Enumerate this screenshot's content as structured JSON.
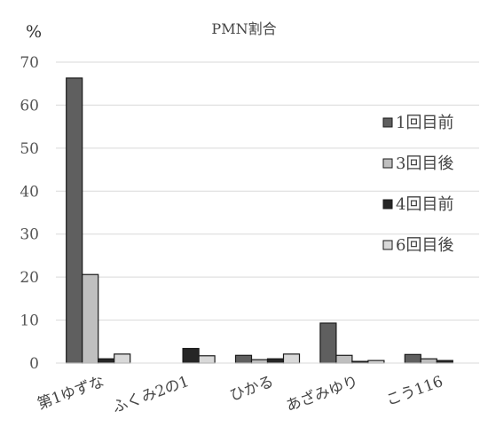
{
  "chart_data": {
    "type": "bar",
    "title": "PMN割合",
    "ylabel": "%",
    "xlabel": "",
    "ylim": [
      0,
      70
    ],
    "yticks": [
      0,
      10,
      20,
      30,
      40,
      50,
      60,
      70
    ],
    "grid": true,
    "legend_position": "right",
    "categories": [
      "第1ゆずな",
      "ふくみ2の1",
      "ひかる",
      "あざみゆり",
      "こう116"
    ],
    "series": [
      {
        "name": "1回目前",
        "color": "#5f5f5f",
        "values": [
          66.3,
          null,
          1.8,
          9.3,
          2.0
        ]
      },
      {
        "name": "3回目後",
        "color": "#bfbfbf",
        "values": [
          20.6,
          null,
          0.8,
          1.8,
          1.0
        ]
      },
      {
        "name": "4回目前",
        "color": "#262626",
        "values": [
          1.0,
          3.4,
          1.0,
          0.4,
          0.6
        ]
      },
      {
        "name": "6回目後",
        "color": "#d9d9d9",
        "values": [
          2.1,
          1.7,
          2.1,
          0.6,
          null
        ]
      }
    ]
  }
}
